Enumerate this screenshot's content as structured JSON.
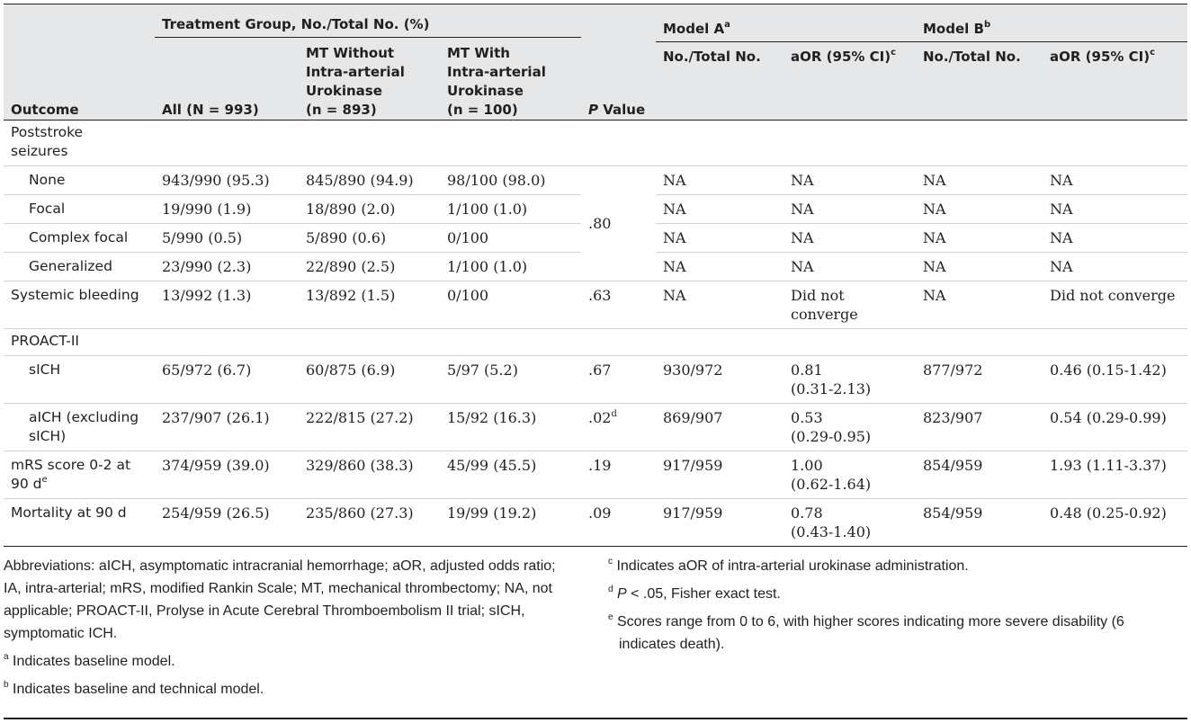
{
  "header": {
    "outcome": "Outcome",
    "group_label": "Treatment Group, No./Total No. (%)",
    "all": "All (N = 993)",
    "mt_without_l1": "MT Without",
    "mt_without_l2": "Intra-arterial",
    "mt_without_l3": "Urokinase",
    "mt_without_l4": "(n = 893)",
    "mt_with_l1": "MT With",
    "mt_with_l2": "Intra-arterial",
    "mt_with_l3": "Urokinase",
    "mt_with_l4": "(n = 100)",
    "p_italic": "P",
    "p_rest": " Value",
    "model_a": "Model A",
    "model_a_sup": "a",
    "model_b": "Model B",
    "model_b_sup": "b",
    "no_total": "No./Total No.",
    "aor": "aOR (95% CI)",
    "aor_sup": "c"
  },
  "rows": {
    "seizures_l1": "Poststroke",
    "seizures_l2": "seizures",
    "none": {
      "label": "None",
      "all": "943/990 (95.3)",
      "without": "845/890 (94.9)",
      "with": "98/100 (98.0)",
      "a_n": "NA",
      "a_or": "NA",
      "b_n": "NA",
      "b_or": "NA"
    },
    "focal": {
      "label": "Focal",
      "all": "19/990 (1.9)",
      "without": "18/890 (2.0)",
      "with": "1/100 (1.0)",
      "a_n": "NA",
      "a_or": "NA",
      "b_n": "NA",
      "b_or": "NA"
    },
    "seizure_p": ".80",
    "complex": {
      "label": "Complex focal",
      "all": "5/990 (0.5)",
      "without": "5/890 (0.6)",
      "with": "0/100",
      "a_n": "NA",
      "a_or": "NA",
      "b_n": "NA",
      "b_or": "NA"
    },
    "generalized": {
      "label": "Generalized",
      "all": "23/990 (2.3)",
      "without": "22/890 (2.5)",
      "with": "1/100 (1.0)",
      "a_n": "NA",
      "a_or": "NA",
      "b_n": "NA",
      "b_or": "NA"
    },
    "systemic": {
      "label": "Systemic bleeding",
      "all": "13/992 (1.3)",
      "without": "13/892 (1.5)",
      "with": "0/100",
      "p": ".63",
      "a_n": "NA",
      "a_or_l1": "Did not",
      "a_or_l2": "converge",
      "b_n": "NA",
      "b_or": "Did not converge"
    },
    "proact": "PROACT-II",
    "sich": {
      "label": "sICH",
      "all": "65/972 (6.7)",
      "without": "60/875 (6.9)",
      "with": "5/97 (5.2)",
      "p": ".67",
      "a_n": "930/972",
      "a_or_l1": "0.81",
      "a_or_l2": "(0.31-2.13)",
      "b_n": "877/972",
      "b_or": "0.46 (0.15-1.42)"
    },
    "aich": {
      "label_l1": "aICH (excluding",
      "label_l2": "sICH)",
      "all": "237/907 (26.1)",
      "without": "222/815 (27.2)",
      "with": "15/92 (16.3)",
      "p": ".02",
      "p_sup": "d",
      "a_n": "869/907",
      "a_or_l1": "0.53",
      "a_or_l2": "(0.29-0.95)",
      "b_n": "823/907",
      "b_or": "0.54 (0.29-0.99)"
    },
    "mrs": {
      "label_l1": "mRS score 0-2 at",
      "label_l2": "90 d",
      "label_sup": "e",
      "all": "374/959 (39.0)",
      "without": "329/860 (38.3)",
      "with": "45/99 (45.5)",
      "p": ".19",
      "a_n": "917/959",
      "a_or_l1": "1.00",
      "a_or_l2": "(0.62-1.64)",
      "b_n": "854/959",
      "b_or": "1.93 (1.11-3.37)"
    },
    "mortality": {
      "label": "Mortality at 90 d",
      "all": "254/959 (26.5)",
      "without": "235/860 (27.3)",
      "with": "19/99 (19.2)",
      "p": ".09",
      "a_n": "917/959",
      "a_or_l1": "0.78",
      "a_or_l2": "(0.43-1.40)",
      "b_n": "854/959",
      "b_or": "0.48 (0.25-0.92)"
    }
  },
  "notes": {
    "abbrev": "Abbreviations: aICH, asymptomatic intracranial hemorrhage; aOR, adjusted odds ratio; IA, intra-arterial; mRS, modified Rankin Scale; MT, mechanical thrombectomy; NA, not applicable; PROACT-II, Prolyse in Acute Cerebral Thromboembolism II trial; sICH, symptomatic ICH.",
    "a_mark": "a",
    "a_text": " Indicates baseline model.",
    "b_mark": "b",
    "b_text": " Indicates baseline and technical model.",
    "c_mark": "c",
    "c_text": " Indicates aOR of intra-arterial urokinase administration.",
    "d_mark": "d",
    "d_italic": "P",
    "d_text": " < .05, Fisher exact test.",
    "e_mark": "e",
    "e_text": " Scores range from 0 to 6, with higher scores indicating more severe disability (6 indicates death)."
  }
}
